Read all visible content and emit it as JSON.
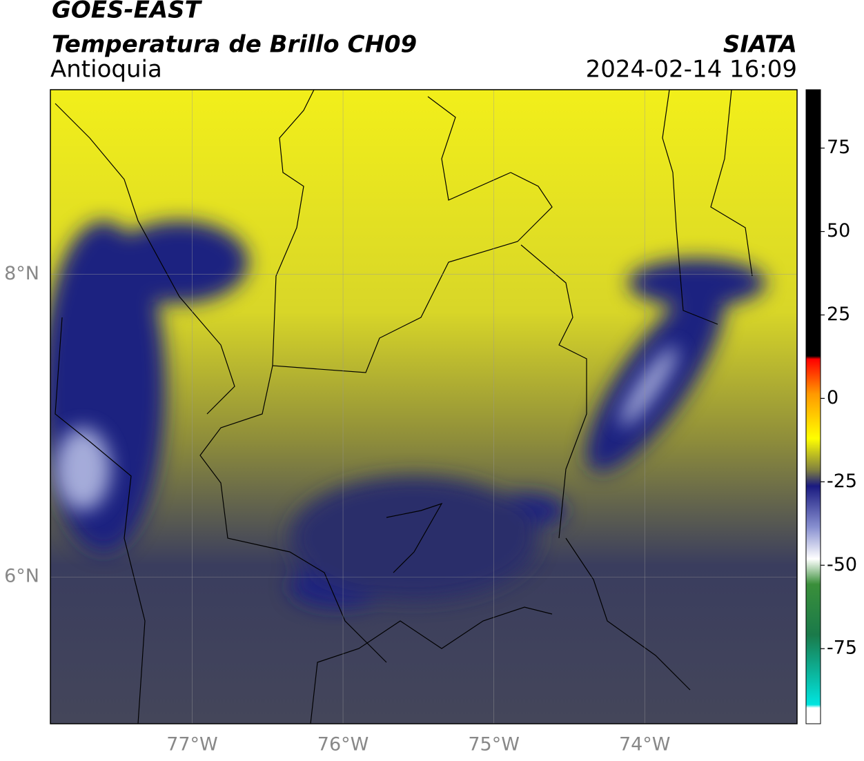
{
  "header": {
    "satellite": "GOES-EAST",
    "product": "Temperatura de Brillo CH09",
    "region": "Antioquia",
    "source": "SIATA",
    "datetime": "2024-02-14 16:09"
  },
  "map": {
    "xlim": [
      -77.94,
      -72.99
    ],
    "ylim": [
      5.03,
      9.22
    ],
    "xticks": [
      {
        "value": -77,
        "label": "77°W"
      },
      {
        "value": -76,
        "label": "76°W"
      },
      {
        "value": -75,
        "label": "75°W"
      },
      {
        "value": -74,
        "label": "74°W"
      }
    ],
    "yticks": [
      {
        "value": 6,
        "label": "6°N"
      },
      {
        "value": 8,
        "label": "8°N"
      }
    ],
    "grid": true
  },
  "colorbar": {
    "lim": [
      -97.5,
      92.5
    ],
    "ticks": [
      75,
      50,
      25,
      0,
      -25,
      -50,
      -75
    ]
  }
}
